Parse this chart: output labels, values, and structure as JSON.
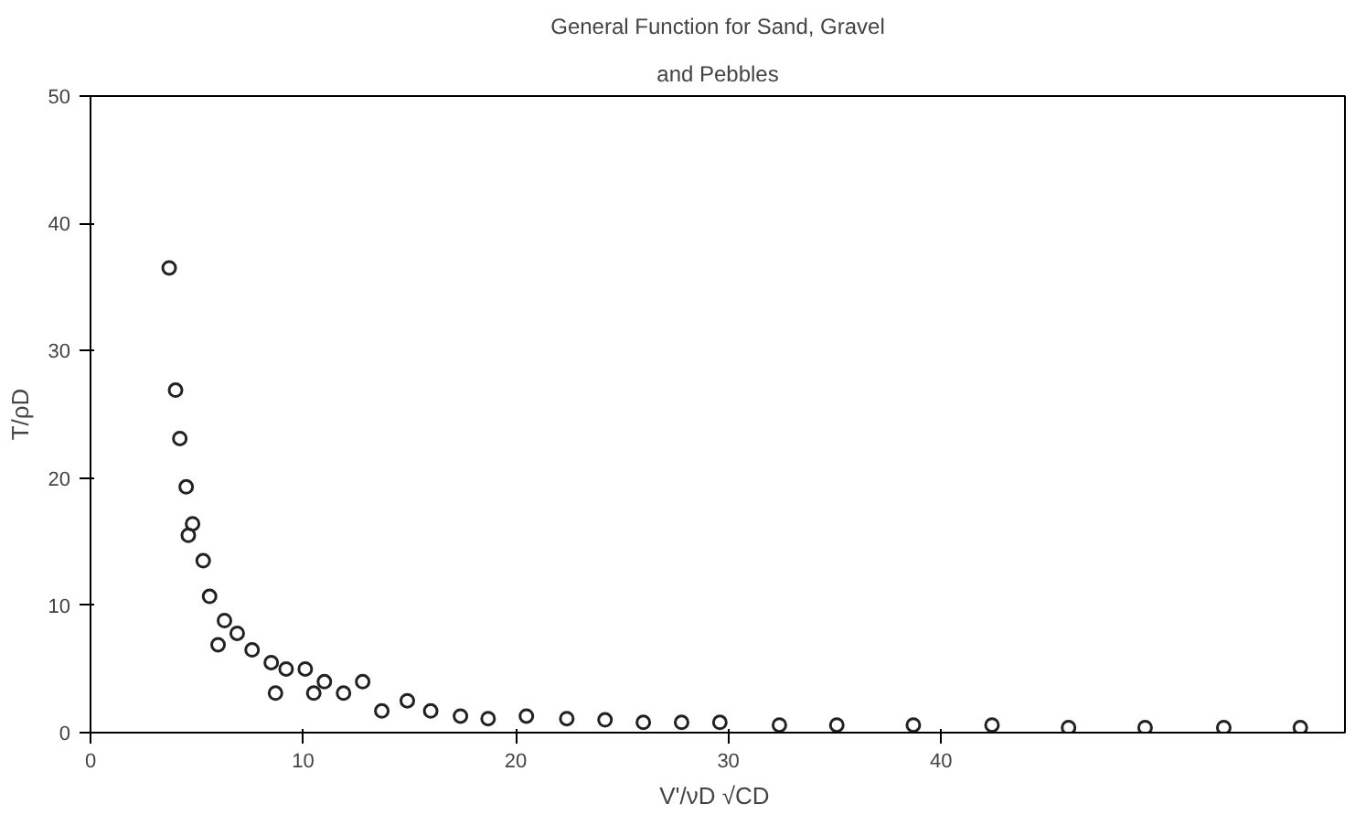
{
  "chart_data": {
    "type": "scatter",
    "title": "General Function for Sand, Gravel",
    "subtitle": "and Pebbles",
    "xlabel": "V'/νD  √CD",
    "ylabel": "T/ρD",
    "x": [
      3.7,
      4.0,
      4.2,
      4.5,
      4.6,
      4.8,
      5.3,
      5.6,
      6.0,
      6.3,
      6.9,
      7.6,
      8.5,
      8.7,
      9.2,
      10.1,
      10.5,
      11.0,
      11.9,
      12.8,
      13.7,
      14.9,
      16.0,
      17.4,
      18.7,
      20.5,
      22.4,
      24.2,
      26.0,
      27.8,
      29.6,
      32.4,
      35.1,
      38.7,
      42.4,
      46.0,
      49.6,
      53.3,
      56.9
    ],
    "values": [
      36.5,
      26.9,
      23.1,
      19.3,
      15.5,
      16.4,
      13.5,
      10.7,
      6.9,
      8.8,
      7.8,
      6.5,
      5.5,
      3.1,
      5.0,
      5.0,
      3.1,
      4.0,
      3.1,
      4.0,
      1.7,
      2.5,
      1.7,
      1.3,
      1.1,
      1.3,
      1.1,
      1.0,
      0.8,
      0.8,
      0.8,
      0.6,
      0.6,
      0.6,
      0.6,
      0.4,
      0.4,
      0.4,
      0.4
    ],
    "color": "#222222",
    "marker": "circle",
    "grid": false,
    "xlim": [
      0,
      59
    ],
    "ylim": [
      0,
      50
    ],
    "xticks": [
      0,
      10,
      20,
      30,
      40
    ],
    "yticks": [
      0,
      10,
      20,
      30,
      40,
      50
    ]
  }
}
